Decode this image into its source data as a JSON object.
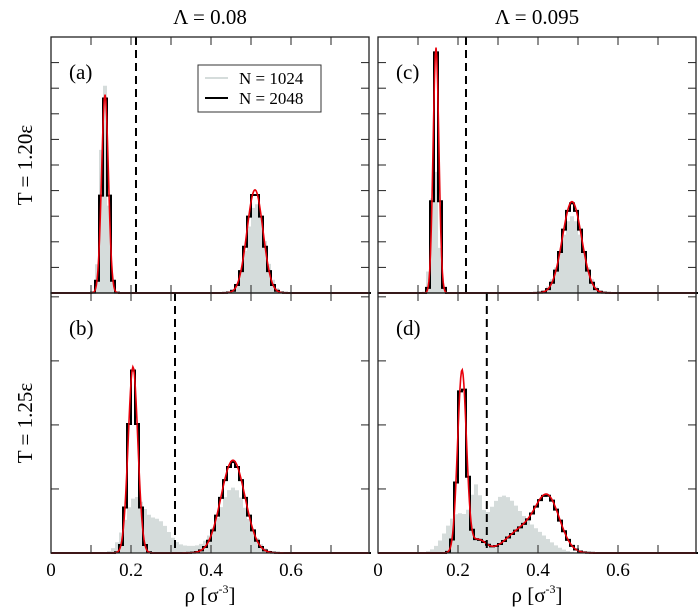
{
  "chart_data": {
    "type": "histogram-grid",
    "column_titles": [
      "Λ = 0.08",
      "Λ = 0.095"
    ],
    "row_titles": [
      "T = 1.20ε",
      "T = 1.25ε"
    ],
    "xlabel": "ρ  [σ",
    "xlabel_sup": "-3",
    "xlabel_end": "]",
    "xlim": [
      0,
      0.795
    ],
    "xticks": [
      0,
      0.2,
      0.4,
      0.6
    ],
    "xtick_labels": [
      "0",
      "0.2",
      "0.4",
      "0.6"
    ],
    "minor_xtick_step": 0.1,
    "bin_width": 0.01,
    "legend": {
      "placement": "top-right of panel (a)",
      "entries": [
        "N = 1024",
        "N = 2048"
      ]
    },
    "colors": {
      "n1024": "#d5dcdb",
      "n2048": "#000000",
      "fit": "#e8000b",
      "divider": "#000000"
    },
    "note": "distributions given as sums of gaussian components [mean, sigma, peak height in y-tick units]",
    "panels": [
      {
        "label": "(a)",
        "row": 0,
        "col": 0,
        "ylim": [
          0,
          10
        ],
        "yticks_step": 1,
        "divider_x": 0.2125,
        "n2048": [
          [
            0.135,
            0.0085,
            7.6
          ],
          [
            0.51,
            0.02,
            3.95
          ]
        ],
        "n1024": [
          [
            0.133,
            0.009,
            8.3
          ],
          [
            0.512,
            0.022,
            3.5
          ]
        ]
      },
      {
        "label": "(b)",
        "row": 1,
        "col": 0,
        "ylim": [
          0,
          4.06
        ],
        "yticks_step": 1,
        "divider_x": 0.31,
        "n2048": [
          [
            0.205,
            0.012,
            2.85
          ],
          [
            0.455,
            0.03,
            1.42
          ]
        ],
        "n1024": [
          [
            0.21,
            0.025,
            0.85
          ],
          [
            0.27,
            0.025,
            0.45
          ],
          [
            0.34,
            0.04,
            0.1
          ],
          [
            0.455,
            0.035,
            1.02
          ]
        ]
      },
      {
        "label": "(c)",
        "row": 0,
        "col": 1,
        "ylim": [
          0,
          10
        ],
        "yticks_step": 1,
        "divider_x": 0.22,
        "n2048": [
          [
            0.145,
            0.0072,
            9.4
          ],
          [
            0.485,
            0.024,
            3.5
          ]
        ],
        "n1024": [
          [
            0.142,
            0.009,
            5.0
          ],
          [
            0.485,
            0.027,
            3.0
          ]
        ]
      },
      {
        "label": "(d)",
        "row": 1,
        "col": 1,
        "ylim": [
          0,
          4.06
        ],
        "yticks_step": 1,
        "divider_x": 0.272,
        "n2048": [
          [
            0.21,
            0.011,
            2.78
          ],
          [
            0.25,
            0.02,
            0.2
          ],
          [
            0.36,
            0.04,
            0.35
          ],
          [
            0.425,
            0.03,
            0.8
          ]
        ],
        "n1024": [
          [
            0.2,
            0.03,
            0.6
          ],
          [
            0.245,
            0.012,
            0.65
          ],
          [
            0.31,
            0.04,
            0.85
          ],
          [
            0.39,
            0.04,
            0.3
          ]
        ]
      }
    ]
  }
}
